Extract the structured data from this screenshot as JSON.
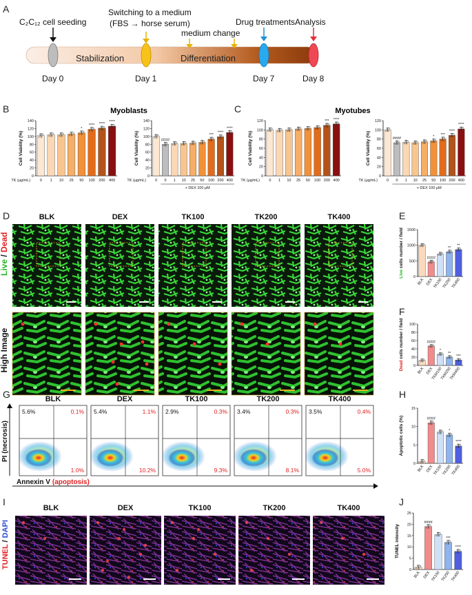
{
  "panels": {
    "A": "A",
    "B": "B",
    "C": "C",
    "D": "D",
    "E": "E",
    "F": "F",
    "G": "G",
    "H": "H",
    "I": "I",
    "J": "J"
  },
  "timeline": {
    "seeding": "C₂C₁₂ cell seeding",
    "switching": "Switching to a medium",
    "switching2": "(FBS → horse serum)",
    "medium_change": "medium change",
    "drug": "Drug treatments",
    "analysis": "Analysis",
    "stabilization": "Stabilization",
    "differentiation": "Differentiation",
    "day0": "Day 0",
    "day1": "Day 1",
    "day7": "Day 7",
    "day8": "Day 8"
  },
  "viability": {
    "ylabel": "Cell Viability (%)",
    "tk_label": "TK (μg/mL)",
    "dex_label": "+ DEX 100 μM",
    "myoblasts_title": "Myoblasts",
    "myotubes_title": "Myotubes",
    "ticks": [
      "0",
      "1",
      "10",
      "25",
      "50",
      "100",
      "200",
      "400"
    ],
    "yticks": [
      "0",
      "20",
      "40",
      "60",
      "80",
      "100",
      "120",
      "140"
    ]
  },
  "chart_data": [
    {
      "id": "B1",
      "type": "bar",
      "title": "Myoblasts",
      "ylabel": "Cell Viability (%)",
      "xlabel": "TK (μg/mL)",
      "categories": [
        "0",
        "1",
        "10",
        "25",
        "50",
        "100",
        "200",
        "400"
      ],
      "values": [
        102,
        104,
        104,
        106,
        109,
        118,
        121,
        126
      ],
      "ylim": [
        0,
        140
      ],
      "sig": [
        "",
        "",
        "",
        "",
        "*",
        "****",
        "****",
        "****"
      ]
    },
    {
      "id": "B2",
      "type": "bar",
      "ylabel": "Cell Viability (%)",
      "xlabel": "TK (μg/mL)",
      "categories": [
        "0",
        "0",
        "1",
        "10",
        "25",
        "50",
        "100",
        "200",
        "400"
      ],
      "values": [
        100,
        80,
        82,
        82,
        83,
        85,
        93,
        99,
        110
      ],
      "ylim": [
        0,
        140
      ],
      "sig": [
        "",
        "####",
        "",
        "",
        "",
        "",
        "***",
        "****",
        "****"
      ]
    },
    {
      "id": "C1",
      "type": "bar",
      "title": "Myotubes",
      "ylabel": "Cell Viability (%)",
      "xlabel": "TK (μg/mL)",
      "categories": [
        "0",
        "1",
        "10",
        "25",
        "50",
        "100",
        "200",
        "400"
      ],
      "values": [
        100,
        99,
        100,
        102,
        103,
        105,
        110,
        113
      ],
      "ylim": [
        0,
        120
      ],
      "sig": [
        "",
        "",
        "",
        "",
        "",
        "",
        "***",
        "****"
      ]
    },
    {
      "id": "C2",
      "type": "bar",
      "ylabel": "Cell Viability (%)",
      "xlabel": "TK (μg/mL)",
      "categories": [
        "0",
        "0",
        "1",
        "10",
        "25",
        "50",
        "100",
        "200",
        "400"
      ],
      "values": [
        100,
        72,
        73,
        72,
        74,
        76,
        80,
        88,
        102
      ],
      "ylim": [
        0,
        120
      ],
      "sig": [
        "",
        "####",
        "",
        "",
        "",
        "*",
        "***",
        "****",
        "****"
      ]
    },
    {
      "id": "E",
      "type": "bar",
      "ylabel": "Live cells number / field",
      "categories": [
        "BLK",
        "DEX",
        "TK100",
        "TK200",
        "TK400"
      ],
      "values": [
        1000,
        470,
        720,
        790,
        860
      ],
      "ylim": [
        0,
        1500
      ],
      "sig": [
        "",
        "####",
        "",
        "**",
        "**"
      ]
    },
    {
      "id": "F",
      "type": "bar",
      "ylabel": "Dead cells number / field",
      "categories": [
        "BLK",
        "DEX",
        "TKM100",
        "TKM200",
        "TKM400"
      ],
      "values": [
        12,
        47,
        27,
        20,
        13
      ],
      "ylim": [
        0,
        100
      ],
      "sig": [
        "",
        "####",
        "*",
        "**",
        "***"
      ]
    },
    {
      "id": "H",
      "type": "bar",
      "ylabel": "Apoptotic cells (%)",
      "categories": [
        "BLK",
        "DEX",
        "TK100",
        "TK200",
        "TK400"
      ],
      "values": [
        0.5,
        11,
        8.5,
        7.7,
        4.7
      ],
      "ylim": [
        0,
        15
      ],
      "sig": [
        "",
        "####",
        "",
        "*",
        "****"
      ]
    },
    {
      "id": "J",
      "type": "bar",
      "ylabel": "TUNEL intensity",
      "categories": [
        "BLK",
        "DEX",
        "TK100",
        "TK200",
        "TK400"
      ],
      "values": [
        1,
        19,
        15.5,
        12,
        8
      ],
      "ylim": [
        0,
        25
      ],
      "sig": [
        "",
        "####",
        "",
        "***",
        "****"
      ]
    }
  ],
  "microscopy": {
    "groups": [
      "BLK",
      "DEX",
      "TK100",
      "TK200",
      "TK400"
    ],
    "live": "Live",
    "slash": " / ",
    "dead": "Dead",
    "high": "High Image",
    "tunel": "TUNEL",
    "dapi": "DAPI"
  },
  "flow": {
    "ylabel": "PI (necrosis)",
    "xlabel": "Annexin V",
    "xlabel2": "(apoptosis)",
    "quadrants": [
      {
        "ul": "5.6%",
        "ur": "0.1%",
        "lr": "1.0%"
      },
      {
        "ul": "5.4%",
        "ur": "1.1%",
        "lr": "10.2%"
      },
      {
        "ul": "2.9%",
        "ur": "0.3%",
        "lr": "9.3%"
      },
      {
        "ul": "3.4%",
        "ur": "0.3%",
        "lr": "8.1%"
      },
      {
        "ul": "3.5%",
        "ur": "0.4%",
        "lr": "5.0%"
      }
    ]
  }
}
